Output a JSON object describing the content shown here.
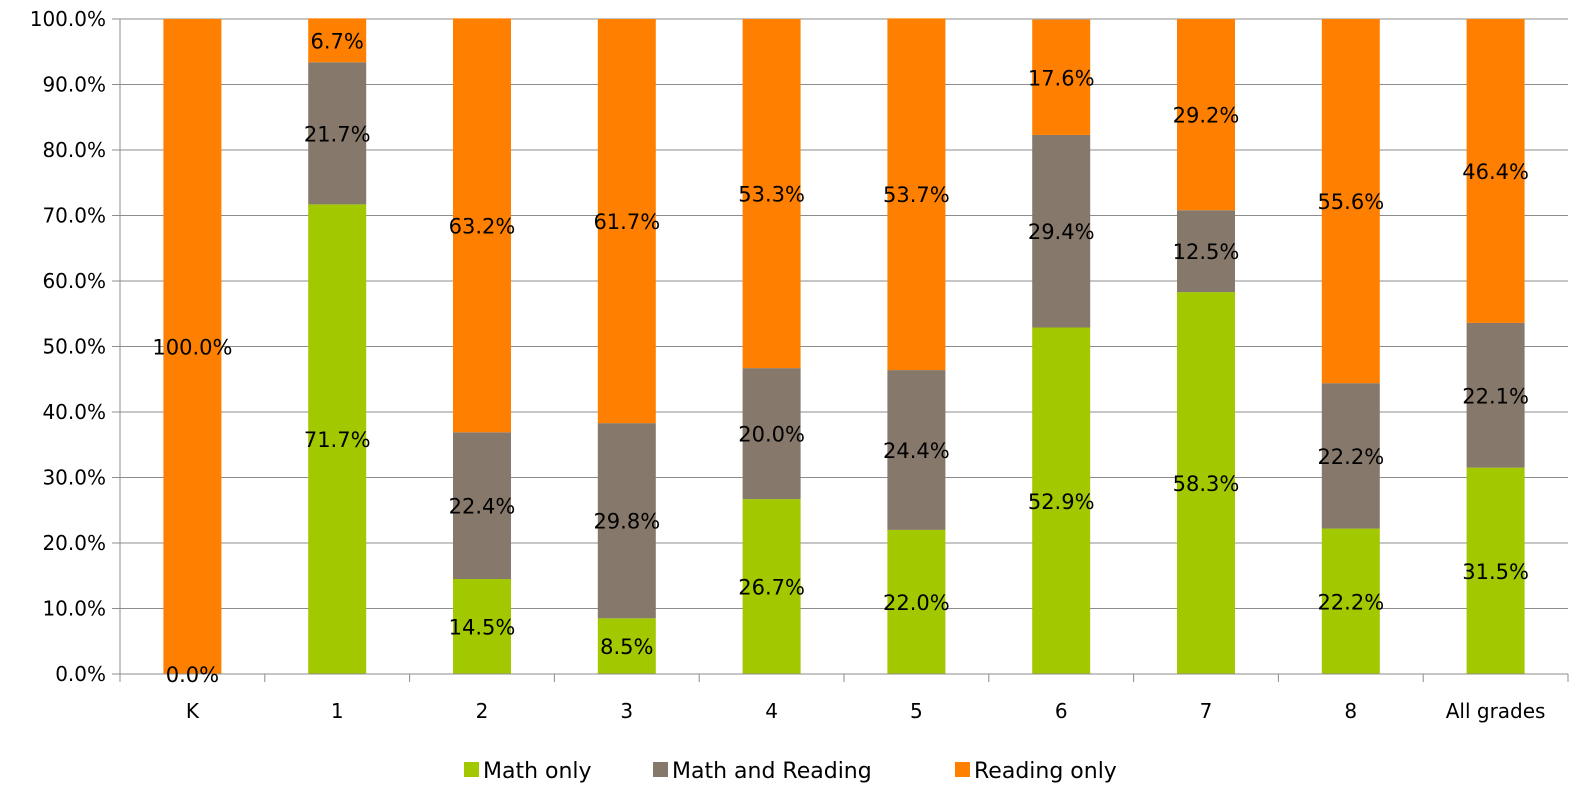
{
  "chart_data": {
    "type": "bar",
    "stacked": true,
    "categories": [
      "K",
      "1",
      "2",
      "3",
      "4",
      "5",
      "6",
      "7",
      "8",
      "All grades"
    ],
    "series": [
      {
        "name": "Math only",
        "color": "#a2c800",
        "values": [
          0.0,
          71.7,
          14.5,
          8.5,
          26.7,
          22.0,
          52.9,
          58.3,
          22.2,
          31.5
        ]
      },
      {
        "name": "Math and Reading",
        "color": "#86796b",
        "values": [
          0.0,
          21.7,
          22.4,
          29.8,
          20.0,
          24.4,
          29.4,
          12.5,
          22.2,
          22.1
        ]
      },
      {
        "name": "Reading only",
        "color": "#ff8000",
        "values": [
          100.0,
          6.7,
          63.2,
          61.7,
          53.3,
          53.7,
          17.6,
          29.2,
          55.6,
          46.4
        ]
      }
    ],
    "data_labels": {
      "K": [
        "0.0%",
        "",
        "100.0%"
      ],
      "1": [
        "71.7%",
        "21.7%",
        "6.7%"
      ],
      "2": [
        "14.5%",
        "22.4%",
        "63.2%"
      ],
      "3": [
        "8.5%",
        "29.8%",
        "61.7%"
      ],
      "4": [
        "26.7%",
        "20.0%",
        "53.3%"
      ],
      "5": [
        "22.0%",
        "24.4%",
        "53.7%"
      ],
      "6": [
        "52.9%",
        "29.4%",
        "17.6%"
      ],
      "7": [
        "58.3%",
        "12.5%",
        "29.2%"
      ],
      "8": [
        "22.2%",
        "22.2%",
        "55.6%"
      ],
      "All grades": [
        "31.5%",
        "22.1%",
        "46.4%"
      ]
    },
    "y_ticks": [
      "0.0%",
      "10.0%",
      "20.0%",
      "30.0%",
      "40.0%",
      "50.0%",
      "60.0%",
      "70.0%",
      "80.0%",
      "90.0%",
      "100.0%"
    ],
    "ylim": [
      0,
      100
    ],
    "grid": true,
    "legend_position": "bottom",
    "title": "",
    "xlabel": "",
    "ylabel": ""
  }
}
